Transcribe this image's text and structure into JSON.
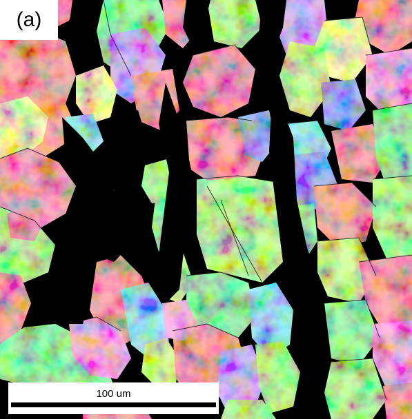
{
  "figure": {
    "panel_label": "(a)",
    "scale_bar_label": "100 um",
    "background_color": "#000000",
    "palette": [
      "#ff4d5a",
      "#ff3b6b",
      "#7cff3a",
      "#3cff55",
      "#a8ff3c",
      "#b46bff",
      "#4a6dff",
      "#44d6ff",
      "#f7ff66",
      "#ff69d8"
    ]
  }
}
